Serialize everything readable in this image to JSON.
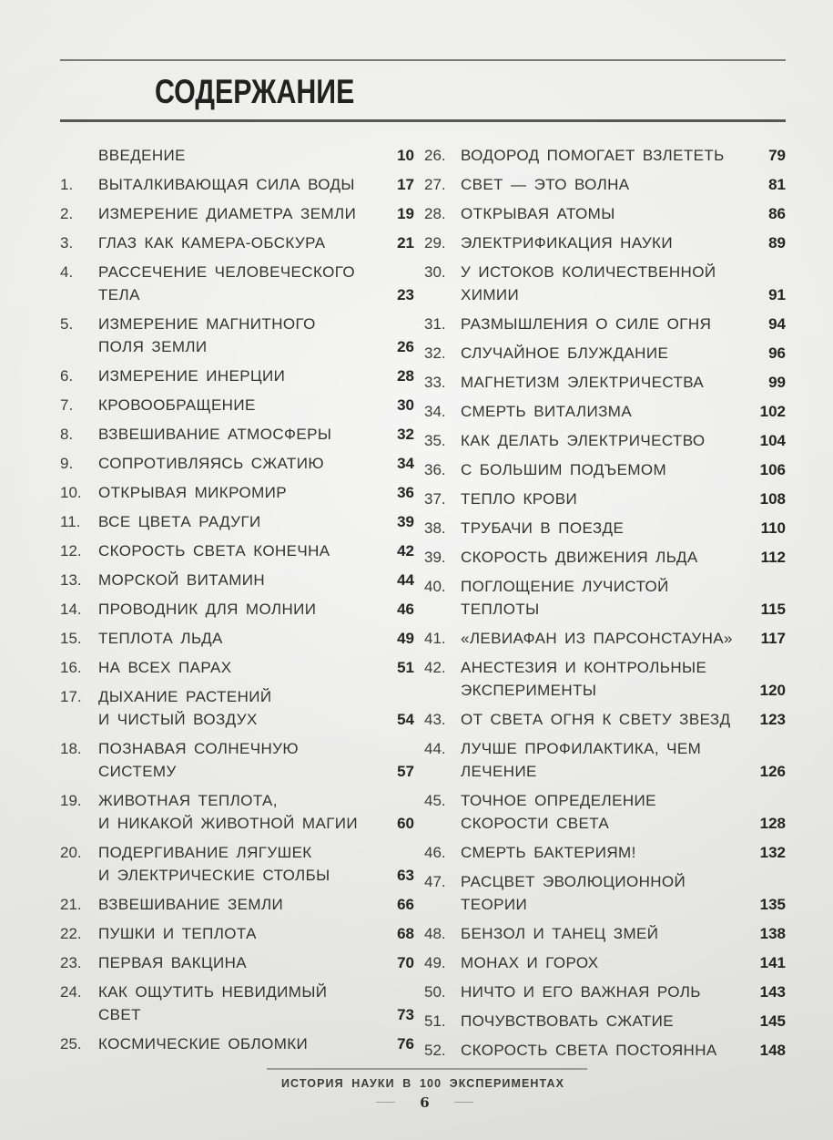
{
  "page": {
    "title": "СОДЕРЖАНИЕ"
  },
  "toc": {
    "left": [
      {
        "num": "",
        "title": "ВВЕДЕНИЕ",
        "page": "10"
      },
      {
        "num": "1.",
        "title": "ВЫТАЛКИВАЮЩАЯ СИЛА ВОДЫ",
        "page": "17"
      },
      {
        "num": "2.",
        "title": "ИЗМЕРЕНИЕ ДИАМЕТРА ЗЕМЛИ",
        "page": "19"
      },
      {
        "num": "3.",
        "title": "ГЛАЗ КАК КАМЕРА-ОБСКУРА",
        "page": "21"
      },
      {
        "num": "4.",
        "title": "РАССЕЧЕНИЕ ЧЕЛОВЕЧЕСКОГО\nТЕЛА",
        "page": "23"
      },
      {
        "num": "5.",
        "title": "ИЗМЕРЕНИЕ МАГНИТНОГО\nПОЛЯ ЗЕМЛИ",
        "page": "26"
      },
      {
        "num": "6.",
        "title": "ИЗМЕРЕНИЕ ИНЕРЦИИ",
        "page": "28"
      },
      {
        "num": "7.",
        "title": "КРОВООБРАЩЕНИЕ",
        "page": "30"
      },
      {
        "num": "8.",
        "title": "ВЗВЕШИВАНИЕ АТМОСФЕРЫ",
        "page": "32"
      },
      {
        "num": "9.",
        "title": "СОПРОТИВЛЯЯСЬ СЖАТИЮ",
        "page": "34"
      },
      {
        "num": "10.",
        "title": "ОТКРЫВАЯ МИКРОМИР",
        "page": "36"
      },
      {
        "num": "11.",
        "title": "ВСЕ ЦВЕТА РАДУГИ",
        "page": "39"
      },
      {
        "num": "12.",
        "title": "СКОРОСТЬ СВЕТА КОНЕЧНА",
        "page": "42"
      },
      {
        "num": "13.",
        "title": "МОРСКОЙ ВИТАМИН",
        "page": "44"
      },
      {
        "num": "14.",
        "title": "ПРОВОДНИК ДЛЯ МОЛНИИ",
        "page": "46"
      },
      {
        "num": "15.",
        "title": "ТЕПЛОТА ЛЬДА",
        "page": "49"
      },
      {
        "num": "16.",
        "title": "НА ВСЕХ ПАРАХ",
        "page": "51"
      },
      {
        "num": "17.",
        "title": "ДЫХАНИЕ РАСТЕНИЙ\nИ ЧИСТЫЙ ВОЗДУХ",
        "page": "54"
      },
      {
        "num": "18.",
        "title": "ПОЗНАВАЯ СОЛНЕЧНУЮ\nСИСТЕМУ",
        "page": "57"
      },
      {
        "num": "19.",
        "title": "ЖИВОТНАЯ ТЕПЛОТА,\nИ НИКАКОЙ ЖИВОТНОЙ МАГИИ",
        "page": "60"
      },
      {
        "num": "20.",
        "title": "ПОДЕРГИВАНИЕ ЛЯГУШЕК\nИ ЭЛЕКТРИЧЕСКИЕ СТОЛБЫ",
        "page": "63"
      },
      {
        "num": "21.",
        "title": "ВЗВЕШИВАНИЕ ЗЕМЛИ",
        "page": "66"
      },
      {
        "num": "22.",
        "title": "ПУШКИ И ТЕПЛОТА",
        "page": "68"
      },
      {
        "num": "23.",
        "title": "ПЕРВАЯ ВАКЦИНА",
        "page": "70"
      },
      {
        "num": "24.",
        "title": "КАК ОЩУТИТЬ НЕВИДИМЫЙ\nСВЕТ",
        "page": "73"
      },
      {
        "num": "25.",
        "title": "КОСМИЧЕСКИЕ ОБЛОМКИ",
        "page": "76"
      }
    ],
    "right": [
      {
        "num": "26.",
        "title": "ВОДОРОД ПОМОГАЕТ ВЗЛЕТЕТЬ",
        "page": "79"
      },
      {
        "num": "27.",
        "title": "СВЕТ — ЭТО ВОЛНА",
        "page": "81"
      },
      {
        "num": "28.",
        "title": "ОТКРЫВАЯ АТОМЫ",
        "page": "86"
      },
      {
        "num": "29.",
        "title": "ЭЛЕКТРИФИКАЦИЯ НАУКИ",
        "page": "89"
      },
      {
        "num": "30.",
        "title": "У ИСТОКОВ КОЛИЧЕСТВЕННОЙ\nХИМИИ",
        "page": "91"
      },
      {
        "num": "31.",
        "title": "РАЗМЫШЛЕНИЯ О СИЛЕ ОГНЯ",
        "page": "94"
      },
      {
        "num": "32.",
        "title": "СЛУЧАЙНОЕ БЛУЖДАНИЕ",
        "page": "96"
      },
      {
        "num": "33.",
        "title": "МАГНЕТИЗМ ЭЛЕКТРИЧЕСТВА",
        "page": "99"
      },
      {
        "num": "34.",
        "title": "СМЕРТЬ ВИТАЛИЗМА",
        "page": "102"
      },
      {
        "num": "35.",
        "title": "КАК ДЕЛАТЬ ЭЛЕКТРИЧЕСТВО",
        "page": "104"
      },
      {
        "num": "36.",
        "title": "С БОЛЬШИМ ПОДЪЕМОМ",
        "page": "106"
      },
      {
        "num": "37.",
        "title": "ТЕПЛО КРОВИ",
        "page": "108"
      },
      {
        "num": "38.",
        "title": "ТРУБАЧИ В ПОЕЗДЕ",
        "page": "110"
      },
      {
        "num": "39.",
        "title": "СКОРОСТЬ ДВИЖЕНИЯ ЛЬДА",
        "page": "112"
      },
      {
        "num": "40.",
        "title": "ПОГЛОЩЕНИЕ ЛУЧИСТОЙ\nТЕПЛОТЫ",
        "page": "115"
      },
      {
        "num": "41.",
        "title": "«ЛЕВИАФАН ИЗ ПАРСОНСТАУНА»",
        "page": "117"
      },
      {
        "num": "42.",
        "title": "АНЕСТЕЗИЯ И КОНТРОЛЬНЫЕ\nЭКСПЕРИМЕНТЫ",
        "page": "120"
      },
      {
        "num": "43.",
        "title": "ОТ СВЕТА ОГНЯ К СВЕТУ ЗВЕЗД",
        "page": "123"
      },
      {
        "num": "44.",
        "title": "ЛУЧШЕ ПРОФИЛАКТИКА, ЧЕМ\nЛЕЧЕНИЕ",
        "page": "126"
      },
      {
        "num": "45.",
        "title": "ТОЧНОЕ ОПРЕДЕЛЕНИЕ\nСКОРОСТИ СВЕТА",
        "page": "128"
      },
      {
        "num": "46.",
        "title": "СМЕРТЬ БАКТЕРИЯМ!",
        "page": "132"
      },
      {
        "num": "47.",
        "title": "РАСЦВЕТ ЭВОЛЮЦИОННОЙ\nТЕОРИИ",
        "page": "135"
      },
      {
        "num": "48.",
        "title": "БЕНЗОЛ И ТАНЕЦ ЗМЕЙ",
        "page": "138"
      },
      {
        "num": "49.",
        "title": "МОНАХ И ГОРОХ",
        "page": "141"
      },
      {
        "num": "50.",
        "title": "НИЧТО И ЕГО ВАЖНАЯ РОЛЬ",
        "page": "143"
      },
      {
        "num": "51.",
        "title": "ПОЧУВСТВОВАТЬ СЖАТИЕ",
        "page": "145"
      },
      {
        "num": "52.",
        "title": "СКОРОСТЬ СВЕТА ПОСТОЯННА",
        "page": "148"
      }
    ]
  },
  "footer": {
    "running_title": "ИСТОРИЯ НАУКИ В 100 ЭКСПЕРИМЕНТАХ",
    "page_number": "6"
  },
  "colors": {
    "background": "#e9e9e7",
    "text": "#2e2e2e",
    "rule_dark": "#565654",
    "rule_light": "#7a7a78"
  }
}
